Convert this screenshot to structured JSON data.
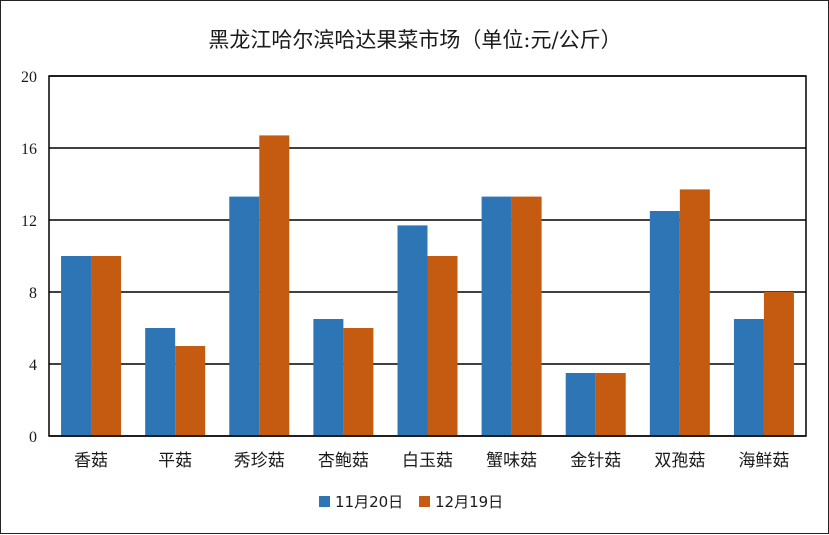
{
  "chart_data": {
    "type": "bar",
    "title": "黑龙江哈尔滨哈达果菜市场（单位:元/公斤）",
    "categories": [
      "香菇",
      "平菇",
      "秀珍菇",
      "杏鲍菇",
      "白玉菇",
      "蟹味菇",
      "金针菇",
      "双孢菇",
      "海鲜菇"
    ],
    "series": [
      {
        "name": "11月20日",
        "color": "#2e75b6",
        "values": [
          10,
          6,
          13.3,
          6.5,
          11.7,
          13.3,
          3.5,
          12.5,
          6.5
        ]
      },
      {
        "name": "12月19日",
        "color": "#c55a11",
        "values": [
          10,
          5,
          16.7,
          6,
          10,
          13.3,
          3.5,
          13.7,
          8
        ]
      }
    ],
    "ylim": [
      0,
      20
    ],
    "yticks": [
      0,
      4,
      8,
      12,
      16,
      20
    ],
    "grid": true,
    "legend_position": "bottom"
  }
}
